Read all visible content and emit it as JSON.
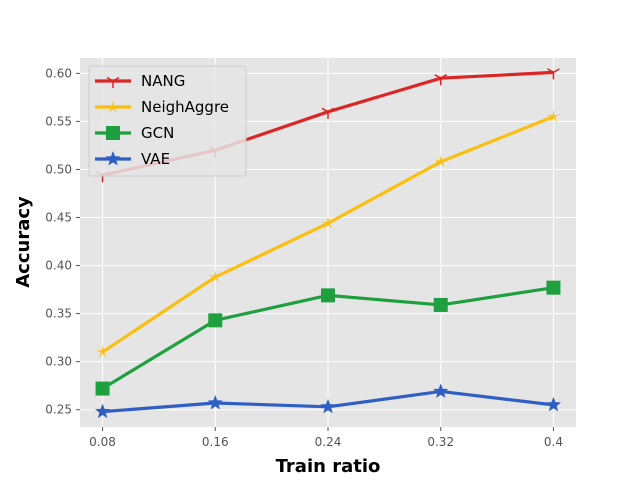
{
  "chart_data": {
    "type": "line",
    "xlabel": "Train ratio",
    "ylabel": "Accuracy",
    "x": [
      0.08,
      0.16,
      0.24,
      0.32,
      0.4
    ],
    "x_tick_labels": [
      "0.08",
      "0.16",
      "0.24",
      "0.32",
      "0.4"
    ],
    "xlim": [
      0.064,
      0.416
    ],
    "ylim": [
      0.232,
      0.616
    ],
    "y_ticks": [
      0.25,
      0.3,
      0.35,
      0.4,
      0.45,
      0.5,
      0.55,
      0.6
    ],
    "y_tick_labels": [
      "0.25",
      "0.30",
      "0.35",
      "0.40",
      "0.45",
      "0.50",
      "0.55",
      "0.60"
    ],
    "grid": true,
    "legend_position": "top-left",
    "background": "#e5e5e5",
    "series": [
      {
        "name": "NANG",
        "color": "#dc2626",
        "marker": "tri",
        "values": [
          0.494,
          0.52,
          0.56,
          0.595,
          0.601
        ]
      },
      {
        "name": "NeighAggre",
        "color": "#fbbf0f",
        "marker": "star-thin",
        "values": [
          0.31,
          0.388,
          0.444,
          0.508,
          0.555
        ]
      },
      {
        "name": "GCN",
        "color": "#1fa03f",
        "marker": "square",
        "values": [
          0.272,
          0.343,
          0.369,
          0.359,
          0.377
        ]
      },
      {
        "name": "VAE",
        "color": "#2f5fc4",
        "marker": "star",
        "values": [
          0.248,
          0.257,
          0.253,
          0.269,
          0.255
        ]
      }
    ]
  }
}
